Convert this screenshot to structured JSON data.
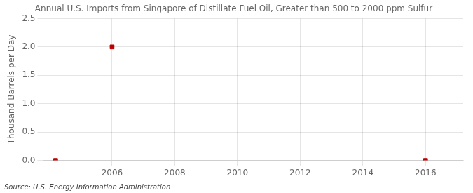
{
  "chart_data": {
    "type": "scatter",
    "title": "Annual U.S. Imports from Singapore of Distillate Fuel Oil, Greater than 500 to 2000 ppm Sulfur",
    "ylabel": "Thousand Barrels per Day",
    "annotations": [
      "Source: U.S. Energy Information Administration"
    ],
    "x": [
      2004.2,
      2006.0,
      2016.0
    ],
    "values": [
      0.0,
      2.0,
      0.0
    ],
    "color": "#bb0000",
    "marker": "square",
    "xlim": [
      2003.8,
      2017.2
    ],
    "xticks": [
      2006,
      2008,
      2010,
      2012,
      2014,
      2016
    ],
    "ylim": [
      0.0,
      2.5
    ],
    "yticks": [
      {
        "value": 0.0,
        "label": "0.0"
      },
      0.5,
      {
        "value": 1.0,
        "label": "1.0"
      },
      1.5,
      {
        "value": 2.0,
        "label": "2.0"
      },
      2.5
    ],
    "grid": true
  }
}
